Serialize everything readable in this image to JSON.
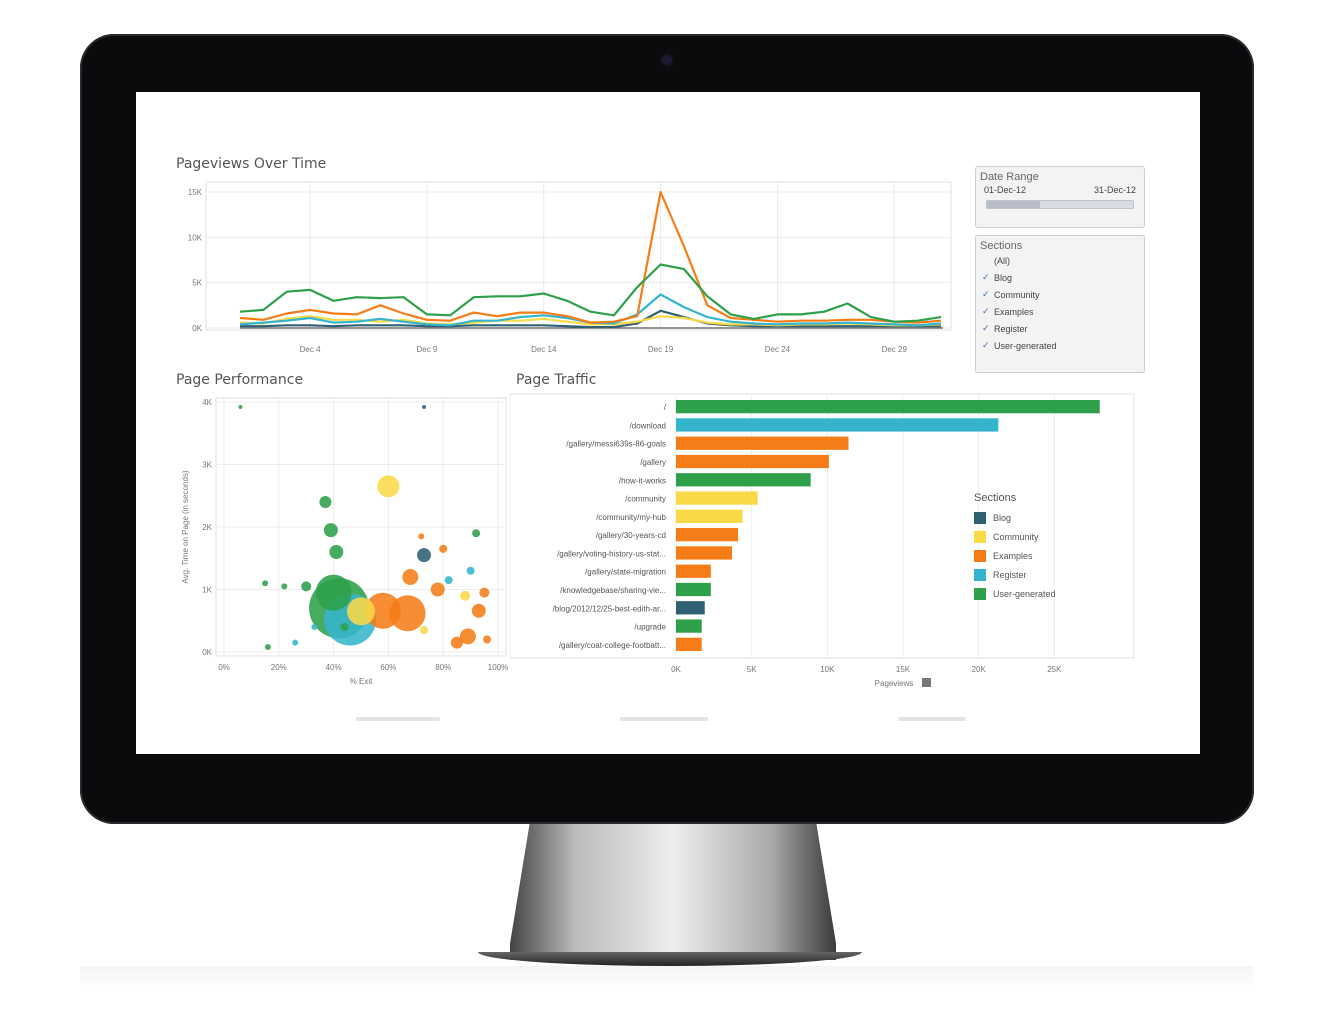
{
  "colors": {
    "blog": "#2f6073",
    "community": "#fad947",
    "examples": "#f57c17",
    "register": "#35b5cd",
    "user_generated": "#2ea04a",
    "grid": "#ececec",
    "axis_text": "#777777"
  },
  "pageviews": {
    "title": "Pageviews Over Time",
    "chart_data": {
      "type": "line",
      "title": "Pageviews Over Time",
      "x": [
        "Dec 1",
        "Dec 2",
        "Dec 3",
        "Dec 4",
        "Dec 5",
        "Dec 6",
        "Dec 7",
        "Dec 8",
        "Dec 9",
        "Dec 10",
        "Dec 11",
        "Dec 12",
        "Dec 13",
        "Dec 14",
        "Dec 15",
        "Dec 16",
        "Dec 17",
        "Dec 18",
        "Dec 19",
        "Dec 20",
        "Dec 21",
        "Dec 22",
        "Dec 23",
        "Dec 24",
        "Dec 25",
        "Dec 26",
        "Dec 27",
        "Dec 28",
        "Dec 29",
        "Dec 30",
        "Dec 31"
      ],
      "x_ticks": [
        "Dec 4",
        "Dec 9",
        "Dec 14",
        "Dec 19",
        "Dec 24",
        "Dec 29"
      ],
      "y_ticks": [
        "0K",
        "5K",
        "10K",
        "15K"
      ],
      "ylim": [
        0,
        15000
      ],
      "series": [
        {
          "name": "User-generated",
          "values": [
            1800,
            2000,
            4000,
            4200,
            3000,
            3400,
            3300,
            3400,
            1500,
            1400,
            3400,
            3500,
            3500,
            3800,
            3000,
            1800,
            1400,
            4500,
            7000,
            6500,
            3500,
            1500,
            1000,
            1500,
            1500,
            1800,
            2700,
            1200,
            700,
            800,
            1200
          ]
        },
        {
          "name": "Examples",
          "values": [
            1100,
            900,
            1600,
            2000,
            1600,
            1500,
            2500,
            1600,
            900,
            800,
            1700,
            1300,
            1700,
            1700,
            1300,
            600,
            700,
            1300,
            15000,
            9000,
            2500,
            1100,
            900,
            700,
            800,
            800,
            900,
            900,
            700,
            600,
            800
          ]
        },
        {
          "name": "Register",
          "values": [
            400,
            600,
            800,
            1100,
            600,
            700,
            1000,
            700,
            400,
            300,
            800,
            800,
            1200,
            1400,
            1100,
            600,
            500,
            1500,
            3700,
            2300,
            1200,
            700,
            500,
            400,
            500,
            500,
            600,
            500,
            400,
            300,
            500
          ]
        },
        {
          "name": "Community",
          "values": [
            600,
            500,
            1000,
            1300,
            900,
            900,
            700,
            900,
            500,
            400,
            600,
            800,
            800,
            1000,
            700,
            400,
            400,
            700,
            1300,
            1100,
            600,
            400,
            400,
            300,
            400,
            400,
            500,
            400,
            300,
            300,
            400
          ]
        },
        {
          "name": "Blog",
          "values": [
            200,
            200,
            300,
            300,
            200,
            300,
            300,
            300,
            200,
            200,
            300,
            300,
            300,
            300,
            200,
            100,
            100,
            500,
            1900,
            1200,
            500,
            300,
            200,
            200,
            200,
            200,
            200,
            200,
            200,
            200,
            200
          ]
        }
      ]
    }
  },
  "date_range": {
    "title": "Date Range",
    "start": "01-Dec-12",
    "end": "31-Dec-12"
  },
  "sections_filter": {
    "title": "Sections",
    "items": [
      {
        "label": "(All)",
        "checked": false
      },
      {
        "label": "Blog",
        "checked": true
      },
      {
        "label": "Community",
        "checked": true
      },
      {
        "label": "Examples",
        "checked": true
      },
      {
        "label": "Register",
        "checked": true
      },
      {
        "label": "User-generated",
        "checked": true
      }
    ]
  },
  "page_performance": {
    "title": "Page Performance",
    "chart_data": {
      "type": "scatter",
      "title": "Page Performance",
      "xlabel": "% Exit",
      "ylabel": "Avg. Time on Page (in seconds)",
      "x_ticks": [
        "0%",
        "20%",
        "40%",
        "60%",
        "80%",
        "100%"
      ],
      "y_ticks": [
        "0K",
        "1K",
        "2K",
        "3K",
        "4K"
      ],
      "xlim": [
        0,
        100
      ],
      "ylim": [
        0,
        4000
      ],
      "points": [
        {
          "x": 42,
          "y": 700,
          "size": 30,
          "section": "user_generated"
        },
        {
          "x": 40,
          "y": 950,
          "size": 18,
          "section": "user_generated"
        },
        {
          "x": 46,
          "y": 520,
          "size": 26,
          "section": "register"
        },
        {
          "x": 50,
          "y": 650,
          "size": 14,
          "section": "community"
        },
        {
          "x": 58,
          "y": 660,
          "size": 18,
          "section": "examples"
        },
        {
          "x": 67,
          "y": 620,
          "size": 18,
          "section": "examples"
        },
        {
          "x": 60,
          "y": 2650,
          "size": 11,
          "section": "community"
        },
        {
          "x": 41,
          "y": 1600,
          "size": 7,
          "section": "user_generated"
        },
        {
          "x": 39,
          "y": 1950,
          "size": 7,
          "section": "user_generated"
        },
        {
          "x": 37,
          "y": 2400,
          "size": 6,
          "section": "user_generated"
        },
        {
          "x": 73,
          "y": 1550,
          "size": 7,
          "section": "blog"
        },
        {
          "x": 68,
          "y": 1200,
          "size": 8,
          "section": "examples"
        },
        {
          "x": 78,
          "y": 1000,
          "size": 7,
          "section": "examples"
        },
        {
          "x": 93,
          "y": 660,
          "size": 7,
          "section": "examples"
        },
        {
          "x": 89,
          "y": 250,
          "size": 8,
          "section": "examples"
        },
        {
          "x": 85,
          "y": 150,
          "size": 6,
          "section": "examples"
        },
        {
          "x": 30,
          "y": 1050,
          "size": 5,
          "section": "user_generated"
        },
        {
          "x": 15,
          "y": 1100,
          "size": 3,
          "section": "user_generated"
        },
        {
          "x": 22,
          "y": 1050,
          "size": 3,
          "section": "user_generated"
        },
        {
          "x": 82,
          "y": 1150,
          "size": 4,
          "section": "register"
        },
        {
          "x": 92,
          "y": 1900,
          "size": 4,
          "section": "user_generated"
        },
        {
          "x": 72,
          "y": 1850,
          "size": 3,
          "section": "examples"
        },
        {
          "x": 80,
          "y": 1650,
          "size": 4,
          "section": "examples"
        },
        {
          "x": 73,
          "y": 350,
          "size": 4,
          "section": "community"
        },
        {
          "x": 96,
          "y": 200,
          "size": 4,
          "section": "examples"
        },
        {
          "x": 88,
          "y": 900,
          "size": 5,
          "section": "community"
        },
        {
          "x": 95,
          "y": 950,
          "size": 5,
          "section": "examples"
        },
        {
          "x": 6,
          "y": 3920,
          "size": 2,
          "section": "user_generated"
        },
        {
          "x": 73,
          "y": 3920,
          "size": 2,
          "section": "blog"
        },
        {
          "x": 44,
          "y": 400,
          "size": 4,
          "section": "user_generated"
        },
        {
          "x": 33,
          "y": 400,
          "size": 3,
          "section": "register"
        },
        {
          "x": 26,
          "y": 150,
          "size": 3,
          "section": "register"
        },
        {
          "x": 16,
          "y": 80,
          "size": 3,
          "section": "user_generated"
        },
        {
          "x": 90,
          "y": 1300,
          "size": 4,
          "section": "register"
        }
      ]
    }
  },
  "page_traffic": {
    "title": "Page Traffic",
    "legend_title": "Sections",
    "legend_items": [
      {
        "label": "Blog",
        "color_key": "blog"
      },
      {
        "label": "Community",
        "color_key": "community"
      },
      {
        "label": "Examples",
        "color_key": "examples"
      },
      {
        "label": "Register",
        "color_key": "register"
      },
      {
        "label": "User-generated",
        "color_key": "user_generated"
      }
    ],
    "chart_data": {
      "type": "bar",
      "title": "Page Traffic",
      "xlabel": "Pageviews",
      "x_ticks": [
        "0K",
        "5K",
        "10K",
        "15K",
        "20K",
        "25K"
      ],
      "xlim": [
        0,
        30000
      ],
      "categories": [
        "/",
        "/download",
        "/gallery/messi639s-86-goals",
        "/gallery",
        "/how-it-works",
        "/community",
        "/community/my-hub",
        "/gallery/30-years-cd",
        "/gallery/voting-history-us-stat...",
        "/gallery/state-migration",
        "/knowledgebase/sharing-vie...",
        "/blog/2012/12/25-best-edith-ar...",
        "/upgrade",
        "/gallery/coat-college-footbatt..."
      ],
      "values": [
        28000,
        21300,
        11400,
        10100,
        8900,
        5400,
        4400,
        4100,
        3700,
        2300,
        2300,
        1900,
        1700,
        1700
      ],
      "sections": [
        "user_generated",
        "register",
        "examples",
        "examples",
        "user_generated",
        "community",
        "community",
        "examples",
        "examples",
        "examples",
        "user_generated",
        "blog",
        "user_generated",
        "examples"
      ]
    }
  }
}
